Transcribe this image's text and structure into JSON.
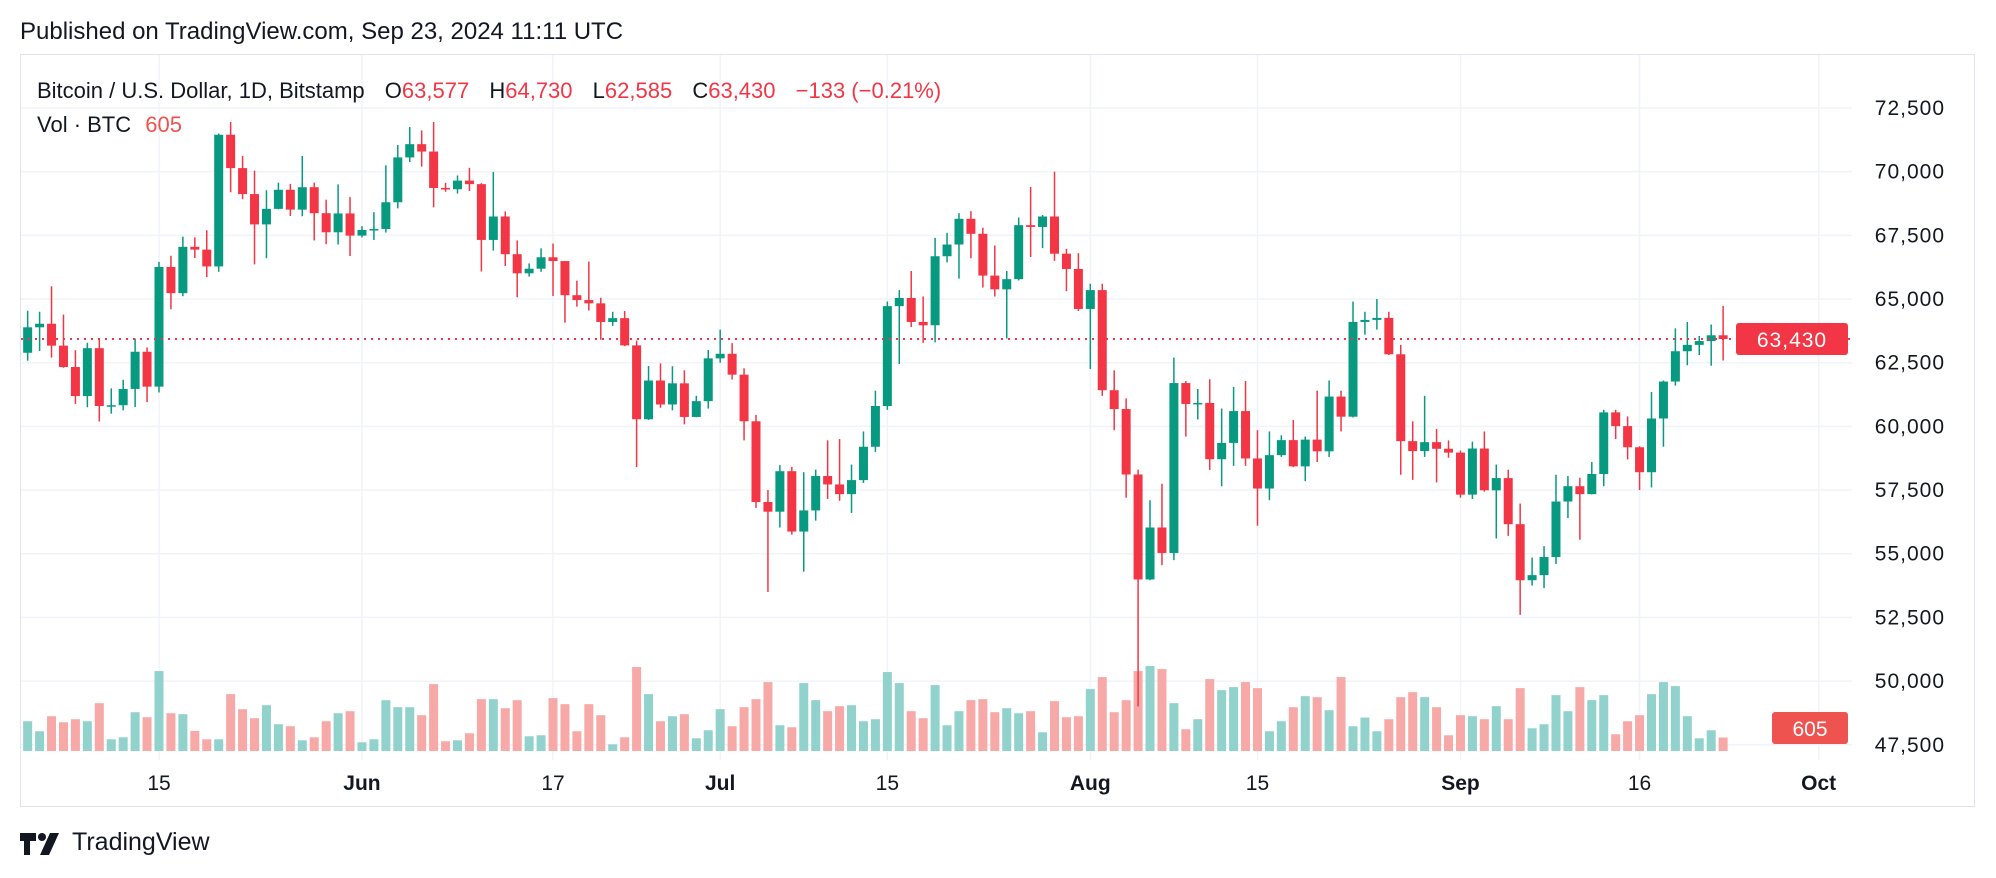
{
  "header": {
    "published": "Published on TradingView.com, Sep 23, 2024 11:11 UTC"
  },
  "legend": {
    "symbol": "Bitcoin / U.S. Dollar, 1D, Bitstamp",
    "open_label": "O",
    "open": "63,577",
    "high_label": "H",
    "high": "64,730",
    "low_label": "L",
    "low": "62,585",
    "close_label": "C",
    "close": "63,430",
    "change": "−133 (−0.21%)",
    "volume_label": "Vol · BTC",
    "volume": "605"
  },
  "footer": {
    "brand": "TradingView"
  },
  "colors": {
    "up": "#089981",
    "down": "#f23645",
    "up_volume": "#92d2cc",
    "down_volume": "#f7a9a7",
    "grid": "#f0f3fa",
    "price_badge": "#f23645",
    "volume_badge": "#ef5350"
  },
  "chart_data": {
    "type": "candlestick",
    "title": "Bitcoin / U.S. Dollar, 1D, Bitstamp",
    "ylabel": "",
    "xlabel": "",
    "ylim": [
      46500,
      73500
    ],
    "grid": true,
    "y_ticks": [
      "72,500",
      "70,000",
      "67,500",
      "65,000",
      "62,500",
      "60,000",
      "57,500",
      "55,000",
      "52,500",
      "50,000",
      "47,500"
    ],
    "y_tick_values": [
      72500,
      70000,
      67500,
      65000,
      62500,
      60000,
      57500,
      55000,
      52500,
      50000,
      47500
    ],
    "x_ticks": [
      {
        "label": "15",
        "date": "2024-05-15",
        "bold": false
      },
      {
        "label": "Jun",
        "date": "2024-06-01",
        "bold": true
      },
      {
        "label": "17",
        "date": "2024-06-17",
        "bold": false
      },
      {
        "label": "Jul",
        "date": "2024-07-01",
        "bold": true
      },
      {
        "label": "15",
        "date": "2024-07-15",
        "bold": false
      },
      {
        "label": "Aug",
        "date": "2024-08-01",
        "bold": true
      },
      {
        "label": "15",
        "date": "2024-08-15",
        "bold": false
      },
      {
        "label": "Sep",
        "date": "2024-09-01",
        "bold": true
      },
      {
        "label": "16",
        "date": "2024-09-16",
        "bold": false
      },
      {
        "label": "Oct",
        "date": "2024-10-01",
        "bold": true
      }
    ],
    "last_price": 63430,
    "last_price_label": "63,430",
    "last_volume": 605,
    "last_volume_label": "605",
    "columns": [
      "date",
      "open",
      "high",
      "low",
      "close",
      "volume"
    ],
    "candles": [
      [
        "2024-05-04",
        62890,
        64540,
        62580,
        63890,
        1335
      ],
      [
        "2024-05-05",
        63890,
        64500,
        62960,
        64030,
        885
      ],
      [
        "2024-05-06",
        64030,
        65500,
        62700,
        63170,
        1560
      ],
      [
        "2024-05-07",
        63170,
        64390,
        62300,
        62330,
        1290
      ],
      [
        "2024-05-08",
        62330,
        62990,
        60880,
        61190,
        1425
      ],
      [
        "2024-05-09",
        61190,
        63280,
        60750,
        63070,
        1335
      ],
      [
        "2024-05-10",
        63070,
        63450,
        60190,
        60800,
        2145
      ],
      [
        "2024-05-11",
        60800,
        61490,
        60500,
        60830,
        525
      ],
      [
        "2024-05-12",
        60830,
        61830,
        60630,
        61470,
        615
      ],
      [
        "2024-05-13",
        61470,
        63450,
        60760,
        62930,
        1740
      ],
      [
        "2024-05-14",
        62930,
        63100,
        60950,
        61560,
        1515
      ],
      [
        "2024-05-15",
        61560,
        66460,
        61330,
        66260,
        3585
      ],
      [
        "2024-05-16",
        66260,
        66700,
        64600,
        65230,
        1695
      ],
      [
        "2024-05-17",
        65230,
        67450,
        65110,
        67050,
        1650
      ],
      [
        "2024-05-18",
        67050,
        67420,
        66610,
        66940,
        900
      ],
      [
        "2024-05-19",
        66940,
        67700,
        65860,
        66280,
        525
      ],
      [
        "2024-05-20",
        66280,
        71500,
        66070,
        71450,
        525
      ],
      [
        "2024-05-21",
        71450,
        71950,
        69190,
        70140,
        2550
      ],
      [
        "2024-05-22",
        70140,
        70620,
        68920,
        69120,
        1875
      ],
      [
        "2024-05-23",
        69120,
        70040,
        66360,
        67930,
        1470
      ],
      [
        "2024-05-24",
        67930,
        69270,
        66600,
        68540,
        2055
      ],
      [
        "2024-05-25",
        68540,
        69570,
        68520,
        69290,
        1200
      ],
      [
        "2024-05-26",
        69290,
        69520,
        68260,
        68510,
        1110
      ],
      [
        "2024-05-27",
        68510,
        70620,
        68250,
        69390,
        480
      ],
      [
        "2024-05-28",
        69390,
        69570,
        67300,
        68370,
        615
      ],
      [
        "2024-05-29",
        68370,
        68900,
        67150,
        67620,
        1335
      ],
      [
        "2024-05-30",
        67620,
        69500,
        67140,
        68360,
        1695
      ],
      [
        "2024-05-31",
        68360,
        69000,
        66690,
        67490,
        1785
      ],
      [
        "2024-06-01",
        67490,
        67860,
        67420,
        67710,
        390
      ],
      [
        "2024-06-02",
        67710,
        68410,
        67320,
        67750,
        525
      ],
      [
        "2024-06-03",
        67750,
        70250,
        67610,
        68800,
        2280
      ],
      [
        "2024-06-04",
        68800,
        71050,
        68560,
        70560,
        1965
      ],
      [
        "2024-06-05",
        70560,
        71750,
        70380,
        71080,
        1965
      ],
      [
        "2024-06-06",
        71080,
        71620,
        70200,
        70790,
        1605
      ],
      [
        "2024-06-07",
        70790,
        71950,
        68600,
        69360,
        3000
      ],
      [
        "2024-06-08",
        69360,
        69560,
        69210,
        69310,
        435
      ],
      [
        "2024-06-09",
        69310,
        69850,
        69140,
        69650,
        480
      ],
      [
        "2024-06-10",
        69650,
        70150,
        69240,
        69510,
        795
      ],
      [
        "2024-06-11",
        69510,
        69550,
        66080,
        67320,
        2325
      ],
      [
        "2024-06-12",
        67320,
        69990,
        66900,
        68240,
        2325
      ],
      [
        "2024-06-13",
        68240,
        68440,
        66300,
        66760,
        1920
      ],
      [
        "2024-06-14",
        66760,
        67300,
        65070,
        66010,
        2280
      ],
      [
        "2024-06-15",
        66010,
        66400,
        65880,
        66190,
        660
      ],
      [
        "2024-06-16",
        66190,
        66990,
        66070,
        66640,
        705
      ],
      [
        "2024-06-17",
        66640,
        67180,
        65120,
        66490,
        2370
      ],
      [
        "2024-06-18",
        66490,
        66490,
        64070,
        65150,
        2100
      ],
      [
        "2024-06-19",
        65150,
        65720,
        64700,
        64960,
        885
      ],
      [
        "2024-06-20",
        64960,
        66470,
        64550,
        64830,
        2100
      ],
      [
        "2024-06-21",
        64830,
        65050,
        63400,
        64100,
        1605
      ],
      [
        "2024-06-22",
        64100,
        64500,
        63950,
        64250,
        300
      ],
      [
        "2024-06-23",
        64250,
        64530,
        63150,
        63180,
        615
      ],
      [
        "2024-06-24",
        63180,
        63370,
        58400,
        60280,
        3765
      ],
      [
        "2024-06-25",
        60280,
        62370,
        60250,
        61800,
        2550
      ],
      [
        "2024-06-26",
        61800,
        62470,
        60730,
        60860,
        1335
      ],
      [
        "2024-06-27",
        60860,
        62360,
        60630,
        61690,
        1560
      ],
      [
        "2024-06-28",
        61690,
        62200,
        60080,
        60370,
        1650
      ],
      [
        "2024-06-29",
        60370,
        61200,
        60360,
        60990,
        570
      ],
      [
        "2024-06-30",
        60990,
        63000,
        60700,
        62670,
        930
      ],
      [
        "2024-07-01",
        62670,
        63800,
        62500,
        62850,
        1875
      ],
      [
        "2024-07-02",
        62850,
        63270,
        61840,
        62030,
        1110
      ],
      [
        "2024-07-03",
        62030,
        62280,
        59450,
        60200,
        1965
      ],
      [
        "2024-07-04",
        60200,
        60450,
        56800,
        57030,
        2325
      ],
      [
        "2024-07-05",
        57030,
        57500,
        53500,
        56650,
        3090
      ],
      [
        "2024-07-06",
        56650,
        58480,
        56030,
        58240,
        1155
      ],
      [
        "2024-07-07",
        58240,
        58410,
        55750,
        55870,
        1065
      ],
      [
        "2024-07-08",
        55870,
        58200,
        54300,
        56700,
        3045
      ],
      [
        "2024-07-09",
        56700,
        58300,
        56300,
        58050,
        2280
      ],
      [
        "2024-07-10",
        58050,
        59450,
        57150,
        57720,
        1785
      ],
      [
        "2024-07-11",
        57720,
        59500,
        57080,
        57340,
        2010
      ],
      [
        "2024-07-12",
        57340,
        58500,
        56600,
        57890,
        2055
      ],
      [
        "2024-07-13",
        57890,
        59800,
        57780,
        59200,
        1335
      ],
      [
        "2024-07-14",
        59200,
        61400,
        59000,
        60800,
        1425
      ],
      [
        "2024-07-15",
        60800,
        64900,
        60650,
        64720,
        3540
      ],
      [
        "2024-07-16",
        64720,
        65350,
        62450,
        65040,
        3045
      ],
      [
        "2024-07-17",
        65040,
        66100,
        63900,
        64100,
        1785
      ],
      [
        "2024-07-18",
        64100,
        65100,
        63280,
        63970,
        1470
      ],
      [
        "2024-07-19",
        63970,
        67400,
        63300,
        66680,
        2955
      ],
      [
        "2024-07-20",
        66680,
        67600,
        66440,
        67140,
        1155
      ],
      [
        "2024-07-21",
        67140,
        68370,
        65800,
        68150,
        1785
      ],
      [
        "2024-07-22",
        68150,
        68450,
        66600,
        67560,
        2280
      ],
      [
        "2024-07-23",
        67560,
        67800,
        65450,
        65920,
        2325
      ],
      [
        "2024-07-24",
        65920,
        67100,
        65100,
        65380,
        1740
      ],
      [
        "2024-07-25",
        65380,
        66100,
        63450,
        65780,
        1920
      ],
      [
        "2024-07-26",
        65780,
        68200,
        65730,
        67900,
        1695
      ],
      [
        "2024-07-27",
        67900,
        69400,
        66650,
        67830,
        1785
      ],
      [
        "2024-07-28",
        67830,
        68300,
        67000,
        68240,
        840
      ],
      [
        "2024-07-29",
        68240,
        70000,
        66500,
        66780,
        2235
      ],
      [
        "2024-07-30",
        66780,
        66970,
        65310,
        66180,
        1515
      ],
      [
        "2024-07-31",
        66180,
        66800,
        64530,
        64610,
        1560
      ],
      [
        "2024-08-01",
        64610,
        65600,
        62250,
        65350,
        2775
      ],
      [
        "2024-08-02",
        65350,
        65600,
        61200,
        61420,
        3315
      ],
      [
        "2024-08-03",
        61420,
        62200,
        59850,
        60680,
        1740
      ],
      [
        "2024-08-04",
        60680,
        61100,
        57200,
        58110,
        2280
      ],
      [
        "2024-08-05",
        58110,
        58300,
        49000,
        53990,
        3585
      ],
      [
        "2024-08-06",
        53990,
        57100,
        53960,
        56030,
        3810
      ],
      [
        "2024-08-07",
        56030,
        57750,
        54550,
        55030,
        3675
      ],
      [
        "2024-08-08",
        55030,
        62700,
        54750,
        61700,
        2145
      ],
      [
        "2024-08-09",
        61700,
        61780,
        59600,
        60880,
        975
      ],
      [
        "2024-08-10",
        60880,
        61470,
        60270,
        60920,
        1425
      ],
      [
        "2024-08-11",
        60920,
        61850,
        58290,
        58710,
        3225
      ],
      [
        "2024-08-12",
        58710,
        60700,
        57650,
        59350,
        2730
      ],
      [
        "2024-08-13",
        59350,
        61550,
        58450,
        60600,
        2865
      ],
      [
        "2024-08-14",
        60600,
        61780,
        58450,
        58740,
        3090
      ],
      [
        "2024-08-15",
        58740,
        59850,
        56100,
        57560,
        2820
      ],
      [
        "2024-08-16",
        57560,
        59800,
        57100,
        58870,
        885
      ],
      [
        "2024-08-17",
        58870,
        59650,
        58800,
        59460,
        1335
      ],
      [
        "2024-08-18",
        59460,
        60250,
        58400,
        58430,
        1965
      ],
      [
        "2024-08-19",
        58430,
        59600,
        57850,
        59480,
        2460
      ],
      [
        "2024-08-20",
        59480,
        61400,
        58600,
        59020,
        2415
      ],
      [
        "2024-08-21",
        59020,
        61800,
        58800,
        61170,
        1830
      ],
      [
        "2024-08-22",
        61170,
        61400,
        59800,
        60380,
        3315
      ],
      [
        "2024-08-23",
        60380,
        64900,
        60350,
        64100,
        1110
      ],
      [
        "2024-08-24",
        64100,
        64500,
        63600,
        64180,
        1500
      ],
      [
        "2024-08-25",
        64180,
        65000,
        63800,
        64260,
        885
      ],
      [
        "2024-08-26",
        64260,
        64500,
        62800,
        62830,
        1425
      ],
      [
        "2024-08-27",
        62830,
        63200,
        58100,
        59420,
        2415
      ],
      [
        "2024-08-28",
        59420,
        60200,
        57900,
        59030,
        2640
      ],
      [
        "2024-08-29",
        59030,
        61200,
        58800,
        59380,
        2415
      ],
      [
        "2024-08-30",
        59380,
        59900,
        57800,
        59120,
        1965
      ],
      [
        "2024-08-31",
        59120,
        59450,
        58770,
        58970,
        705
      ],
      [
        "2024-09-01",
        58970,
        59050,
        57200,
        57320,
        1605
      ],
      [
        "2024-09-02",
        57320,
        59400,
        57150,
        59130,
        1560
      ],
      [
        "2024-09-03",
        59130,
        59800,
        57440,
        57490,
        1425
      ],
      [
        "2024-09-04",
        57490,
        58500,
        55600,
        57970,
        2010
      ],
      [
        "2024-09-05",
        57970,
        58300,
        55700,
        56160,
        1425
      ],
      [
        "2024-09-06",
        56160,
        56970,
        52600,
        53960,
        2820
      ],
      [
        "2024-09-07",
        53960,
        54850,
        53750,
        54160,
        1020
      ],
      [
        "2024-09-08",
        54160,
        55300,
        53650,
        54870,
        1200
      ],
      [
        "2024-09-09",
        54870,
        58100,
        54600,
        57050,
        2505
      ],
      [
        "2024-09-10",
        57050,
        58050,
        56400,
        57650,
        1785
      ],
      [
        "2024-09-11",
        57650,
        57980,
        55550,
        57340,
        2865
      ],
      [
        "2024-09-12",
        57340,
        58600,
        57330,
        58130,
        2280
      ],
      [
        "2024-09-13",
        58130,
        60650,
        57650,
        60550,
        2505
      ],
      [
        "2024-09-14",
        60550,
        60650,
        59500,
        60010,
        750
      ],
      [
        "2024-09-15",
        60010,
        60390,
        58700,
        59180,
        1335
      ],
      [
        "2024-09-16",
        59180,
        59220,
        57500,
        58200,
        1605
      ],
      [
        "2024-09-17",
        58200,
        61350,
        57600,
        60310,
        2550
      ],
      [
        "2024-09-18",
        60310,
        61800,
        59200,
        61760,
        3090
      ],
      [
        "2024-09-19",
        61760,
        63850,
        61600,
        62950,
        2910
      ],
      [
        "2024-09-20",
        62950,
        64100,
        62400,
        63200,
        1560
      ],
      [
        "2024-09-21",
        63200,
        63550,
        62800,
        63350,
        570
      ],
      [
        "2024-09-22",
        63350,
        64000,
        62380,
        63577,
        930
      ],
      [
        "2024-09-23",
        63577,
        64730,
        62585,
        63430,
        605
      ]
    ]
  }
}
